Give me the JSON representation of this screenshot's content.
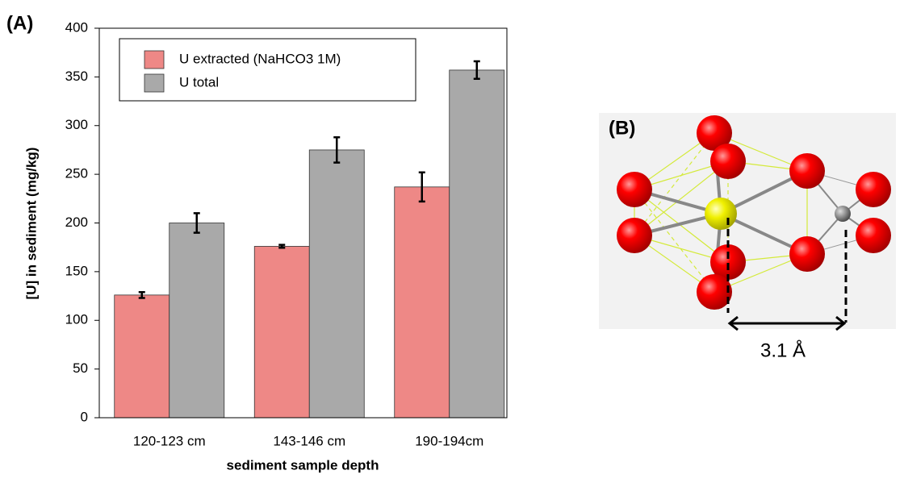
{
  "chart_data": {
    "type": "bar",
    "panel_label": "(A)",
    "x_label": "sediment sample depth",
    "y_label": "[U] in sediment (mg/kg)",
    "categories": [
      "120-123 cm",
      "143-146 cm",
      "190-194cm"
    ],
    "series": [
      {
        "name": "U extracted (NaHCO3 1M)",
        "color": "#ee8886",
        "values": [
          126,
          176,
          237
        ],
        "errors": [
          3,
          1.5,
          15
        ]
      },
      {
        "name": "U total",
        "color": "#a9a9a9",
        "values": [
          200,
          275,
          357
        ],
        "errors": [
          10,
          13,
          9
        ]
      }
    ],
    "ylim": [
      0,
      400
    ],
    "yticks": [
      0,
      50,
      100,
      150,
      200,
      250,
      300,
      350,
      400
    ],
    "grid": false,
    "legend": "top-left"
  },
  "panel_b": {
    "label": "(B)",
    "distance_label": "3.1 Å"
  }
}
